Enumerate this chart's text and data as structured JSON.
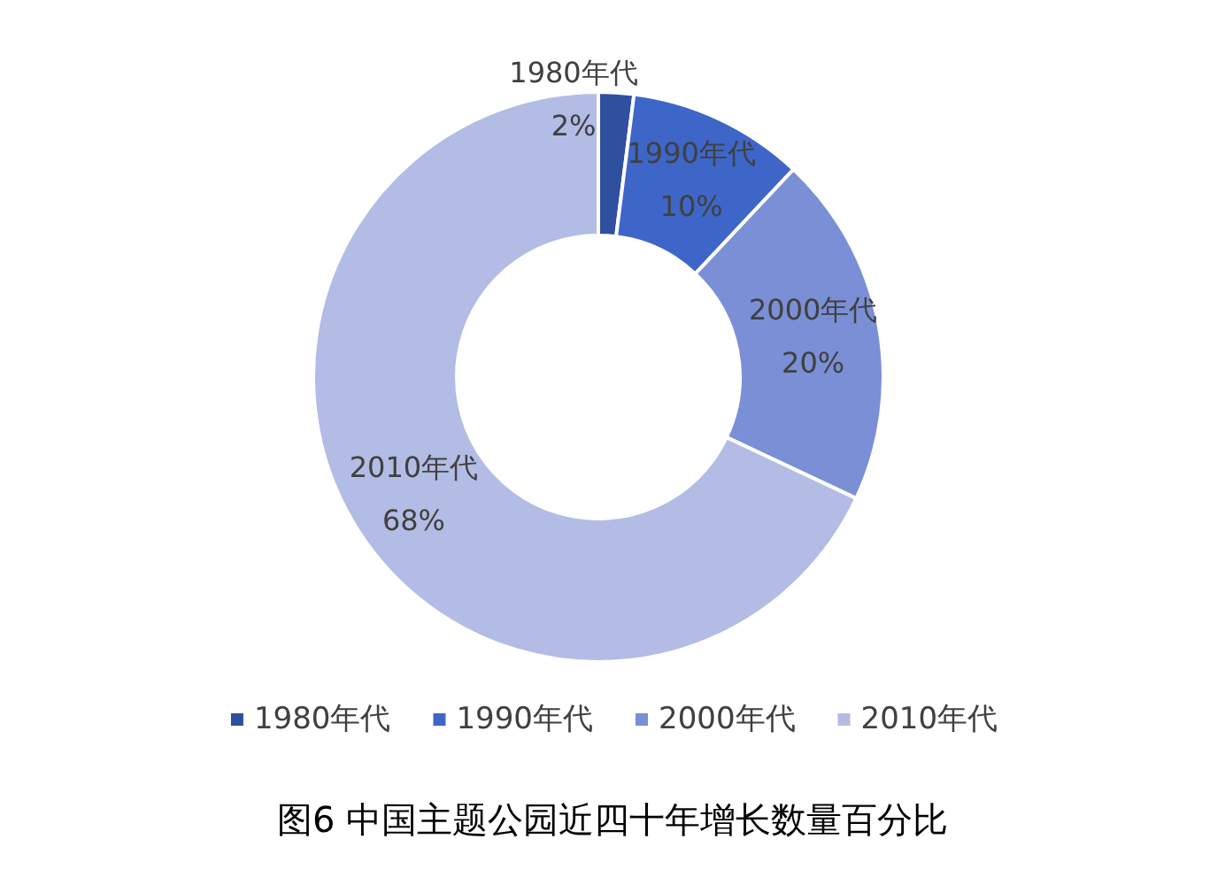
{
  "chart_data": {
    "type": "donut",
    "title": "图6 中国主题公园近四十年增长数量百分比",
    "categories": [
      "1980年代",
      "1990年代",
      "2000年代",
      "2010年代"
    ],
    "values": [
      2,
      10,
      20,
      68
    ],
    "colors": [
      "#2f4f9f",
      "#3d66c8",
      "#7b8fd6",
      "#b3bce4"
    ],
    "value_labels": [
      "2%",
      "10%",
      "20%",
      "68%"
    ],
    "legend": "bottom"
  }
}
